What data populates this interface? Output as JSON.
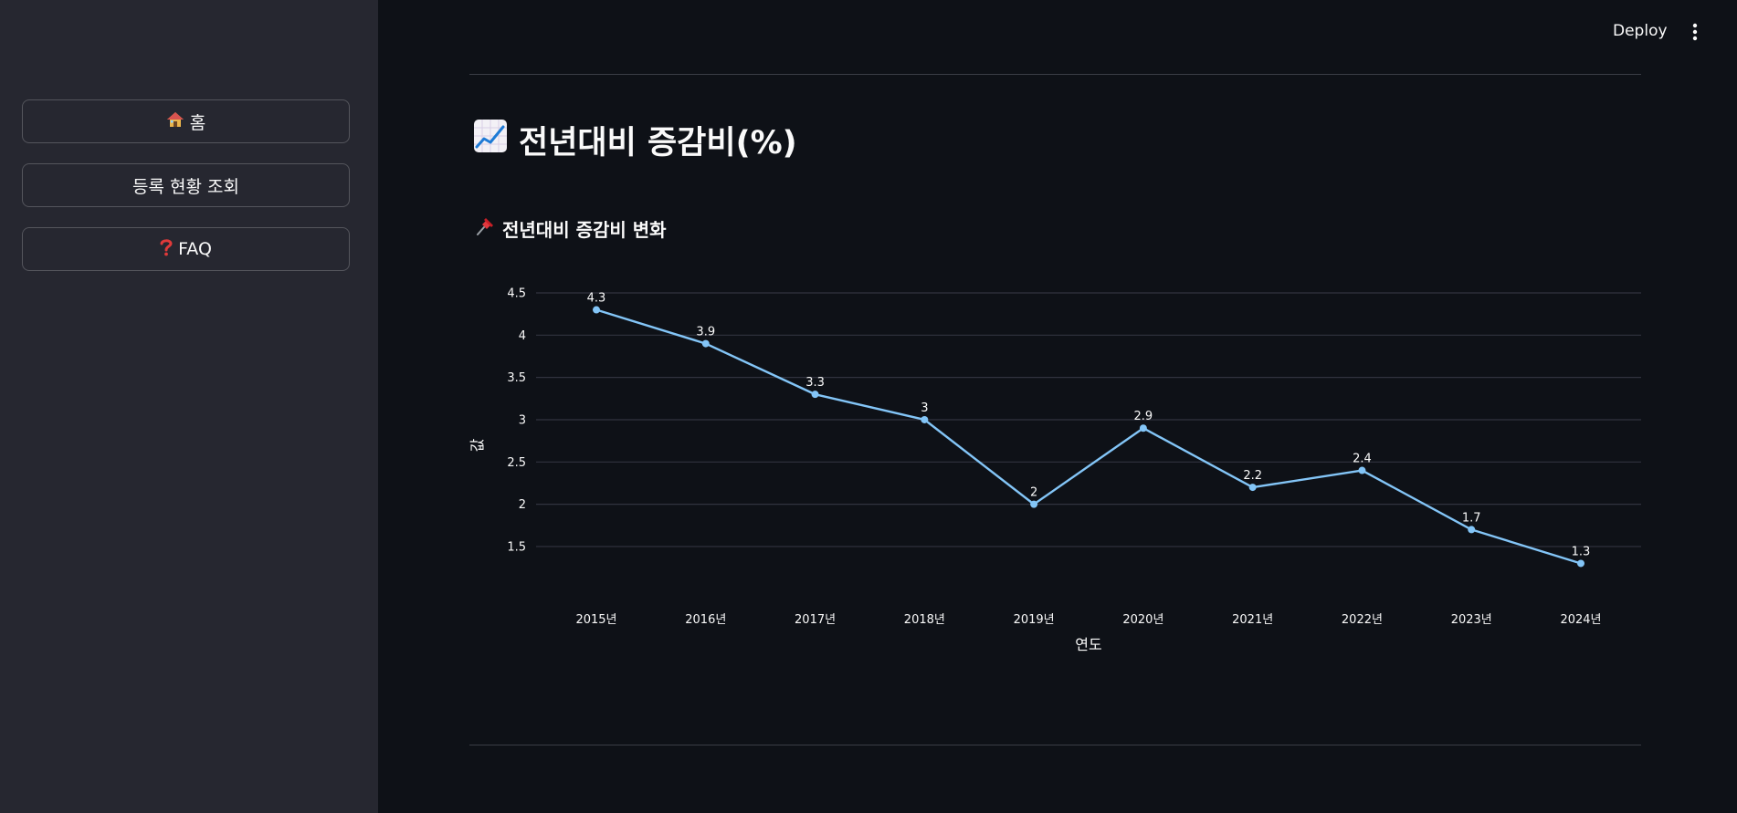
{
  "sidebar": {
    "items": [
      {
        "icon": "house-icon",
        "label": "홈"
      },
      {
        "label": "등록 현황 조회"
      },
      {
        "icon": "question-icon",
        "label": "FAQ"
      }
    ]
  },
  "header": {
    "deploy_label": "Deploy",
    "menu_icon": "kebab-menu-icon"
  },
  "main": {
    "title": "전년대비 증감비(%)",
    "title_icon": "chart-increasing-icon",
    "section_title": "전년대비 증감비 변화",
    "section_icon": "pushpin-icon"
  },
  "colors": {
    "line": "#83c5f7",
    "background": "#0e1117",
    "sidebar": "#262730",
    "grid": "#31333f"
  },
  "chart_data": {
    "type": "line",
    "categories": [
      "2015년",
      "2016년",
      "2017년",
      "2018년",
      "2019년",
      "2020년",
      "2021년",
      "2022년",
      "2023년",
      "2024년"
    ],
    "values": [
      4.3,
      3.9,
      3.3,
      3,
      2,
      2.9,
      2.2,
      2.4,
      1.7,
      1.3
    ],
    "data_labels": [
      "4.3",
      "3.9",
      "3.3",
      "3",
      "2",
      "2.9",
      "2.2",
      "2.4",
      "1.7",
      "1.3"
    ],
    "yticks": [
      "1.5",
      "2",
      "2.5",
      "3",
      "3.5",
      "4",
      "4.5"
    ],
    "ytick_values": [
      1.5,
      2,
      2.5,
      3,
      3.5,
      4,
      4.5
    ],
    "xlabel": "연도",
    "ylabel": "값",
    "ylim": [
      1.1,
      4.5
    ],
    "grid": true,
    "markers": true
  }
}
